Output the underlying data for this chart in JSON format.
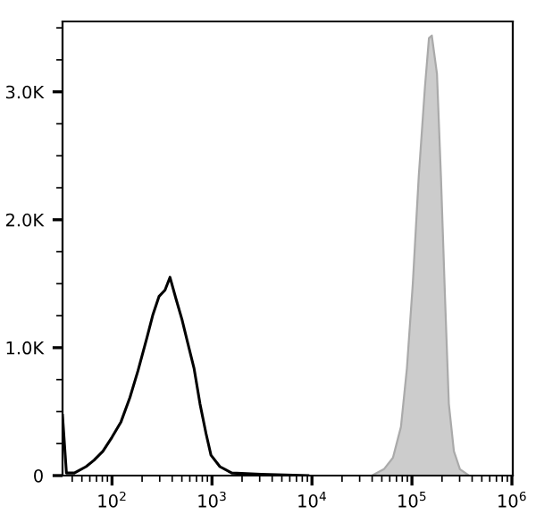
{
  "chart_data": {
    "type": "line",
    "log": "x",
    "grid": false,
    "legend": false,
    "xlim": [
      32,
      1020000
    ],
    "ylim": [
      0,
      3550
    ],
    "xticks": [
      {
        "value": 100,
        "label": "10$^{2}$"
      },
      {
        "value": 1000,
        "label": "10$^{3}$"
      },
      {
        "value": 10000,
        "label": "10$^{4}$"
      },
      {
        "value": 100000,
        "label": "10$^{5}$"
      },
      {
        "value": 1000000,
        "label": "10$^{6}$"
      }
    ],
    "yticks": [
      {
        "value": 0,
        "label": "0"
      },
      {
        "value": 1000,
        "label": "1.0K"
      },
      {
        "value": 2000,
        "label": "2.0K"
      },
      {
        "value": 3000,
        "label": "3.0K"
      }
    ],
    "series": [
      {
        "type": "area",
        "color": "#cccccc",
        "x": [
          39800,
          52500,
          64600,
          77600,
          89100,
          102000,
          117000,
          135000,
          148000,
          158000,
          178000,
          195000,
          214000,
          234000,
          263000,
          302000,
          372000
        ],
        "values": [
          0,
          50,
          140,
          380,
          840,
          1500,
          2340,
          3040,
          3420,
          3440,
          3140,
          2340,
          1400,
          560,
          190,
          50,
          0
        ]
      },
      {
        "color": "#000000",
        "x": [
          32,
          35,
          42,
          55,
          66,
          81,
          100,
          123,
          151,
          182,
          224,
          257,
          295,
          339,
          380,
          437,
          501,
          575,
          661,
          759,
          871,
          977,
          1200,
          1580,
          3090,
          9120
        ],
        "values": [
          470,
          20,
          20,
          70,
          120,
          190,
          300,
          420,
          610,
          820,
          1080,
          1260,
          1400,
          1450,
          1550,
          1380,
          1220,
          1030,
          840,
          560,
          330,
          160,
          70,
          20,
          10,
          0
        ]
      }
    ]
  }
}
